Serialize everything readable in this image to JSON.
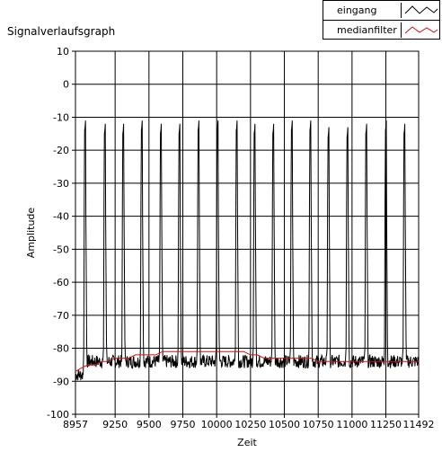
{
  "graph": {
    "title": "Signalverlaufsgraph"
  },
  "legend": {
    "items": [
      {
        "label": "eingang",
        "color": "#000000"
      },
      {
        "label": "medianfilter",
        "color": "#d01010"
      }
    ]
  },
  "chart_data": {
    "type": "line",
    "title": "Signalverlaufsgraph",
    "xlabel": "Zeit",
    "ylabel": "Amplitude",
    "xlim": [
      8957,
      11492
    ],
    "ylim": [
      -100,
      10
    ],
    "x_ticks": [
      8957,
      9250,
      9500,
      9750,
      10000,
      10250,
      10500,
      10750,
      11000,
      11250,
      11492
    ],
    "y_ticks": [
      10,
      0,
      -10,
      -20,
      -30,
      -40,
      -50,
      -60,
      -70,
      -80,
      -90,
      -100
    ],
    "grid": true,
    "legend_position": "top-right",
    "series": [
      {
        "name": "eingang",
        "color": "#000000",
        "baseline": -84,
        "pulse_peaks": [
          {
            "x": 9028,
            "y": -13
          },
          {
            "x": 9174,
            "y": -14
          },
          {
            "x": 9310,
            "y": -14
          },
          {
            "x": 9447,
            "y": -13
          },
          {
            "x": 9588,
            "y": -14
          },
          {
            "x": 9725,
            "y": -14
          },
          {
            "x": 9866,
            "y": -13
          },
          {
            "x": 10007,
            "y": -13
          },
          {
            "x": 10148,
            "y": -13
          },
          {
            "x": 10280,
            "y": -14
          },
          {
            "x": 10418,
            "y": -14
          },
          {
            "x": 10555,
            "y": -13
          },
          {
            "x": 10692,
            "y": -13
          },
          {
            "x": 10826,
            "y": -15
          },
          {
            "x": 10966,
            "y": -15
          },
          {
            "x": 11105,
            "y": -14
          },
          {
            "x": 11250,
            "y": -13
          },
          {
            "x": 11387,
            "y": -14
          }
        ]
      },
      {
        "name": "medianfilter",
        "color": "#d01010",
        "values": [
          [
            8957,
            -87
          ],
          [
            9000,
            -86
          ],
          [
            9050,
            -85
          ],
          [
            9100,
            -85
          ],
          [
            9150,
            -84
          ],
          [
            9200,
            -84
          ],
          [
            9250,
            -83
          ],
          [
            9300,
            -83
          ],
          [
            9350,
            -83
          ],
          [
            9400,
            -82
          ],
          [
            9450,
            -82
          ],
          [
            9500,
            -82
          ],
          [
            9550,
            -82
          ],
          [
            9600,
            -81
          ],
          [
            9650,
            -81
          ],
          [
            9700,
            -81
          ],
          [
            9750,
            -81
          ],
          [
            9800,
            -81
          ],
          [
            9850,
            -81
          ],
          [
            9900,
            -81
          ],
          [
            9950,
            -81
          ],
          [
            10000,
            -81
          ],
          [
            10050,
            -81
          ],
          [
            10100,
            -81
          ],
          [
            10150,
            -81
          ],
          [
            10200,
            -81
          ],
          [
            10250,
            -82
          ],
          [
            10300,
            -82
          ],
          [
            10350,
            -83
          ],
          [
            10400,
            -83
          ],
          [
            10450,
            -83
          ],
          [
            10500,
            -83
          ],
          [
            10550,
            -83
          ],
          [
            10600,
            -83
          ],
          [
            10650,
            -83
          ],
          [
            10700,
            -83
          ],
          [
            10750,
            -84
          ],
          [
            10800,
            -84
          ],
          [
            10850,
            -84
          ],
          [
            10900,
            -84
          ],
          [
            10950,
            -84
          ],
          [
            11000,
            -84
          ],
          [
            11050,
            -84
          ],
          [
            11100,
            -84
          ],
          [
            11150,
            -84
          ],
          [
            11200,
            -84
          ],
          [
            11250,
            -84
          ],
          [
            11300,
            -84
          ],
          [
            11350,
            -84
          ],
          [
            11400,
            -84
          ],
          [
            11450,
            -84
          ],
          [
            11492,
            -84
          ]
        ]
      }
    ]
  }
}
